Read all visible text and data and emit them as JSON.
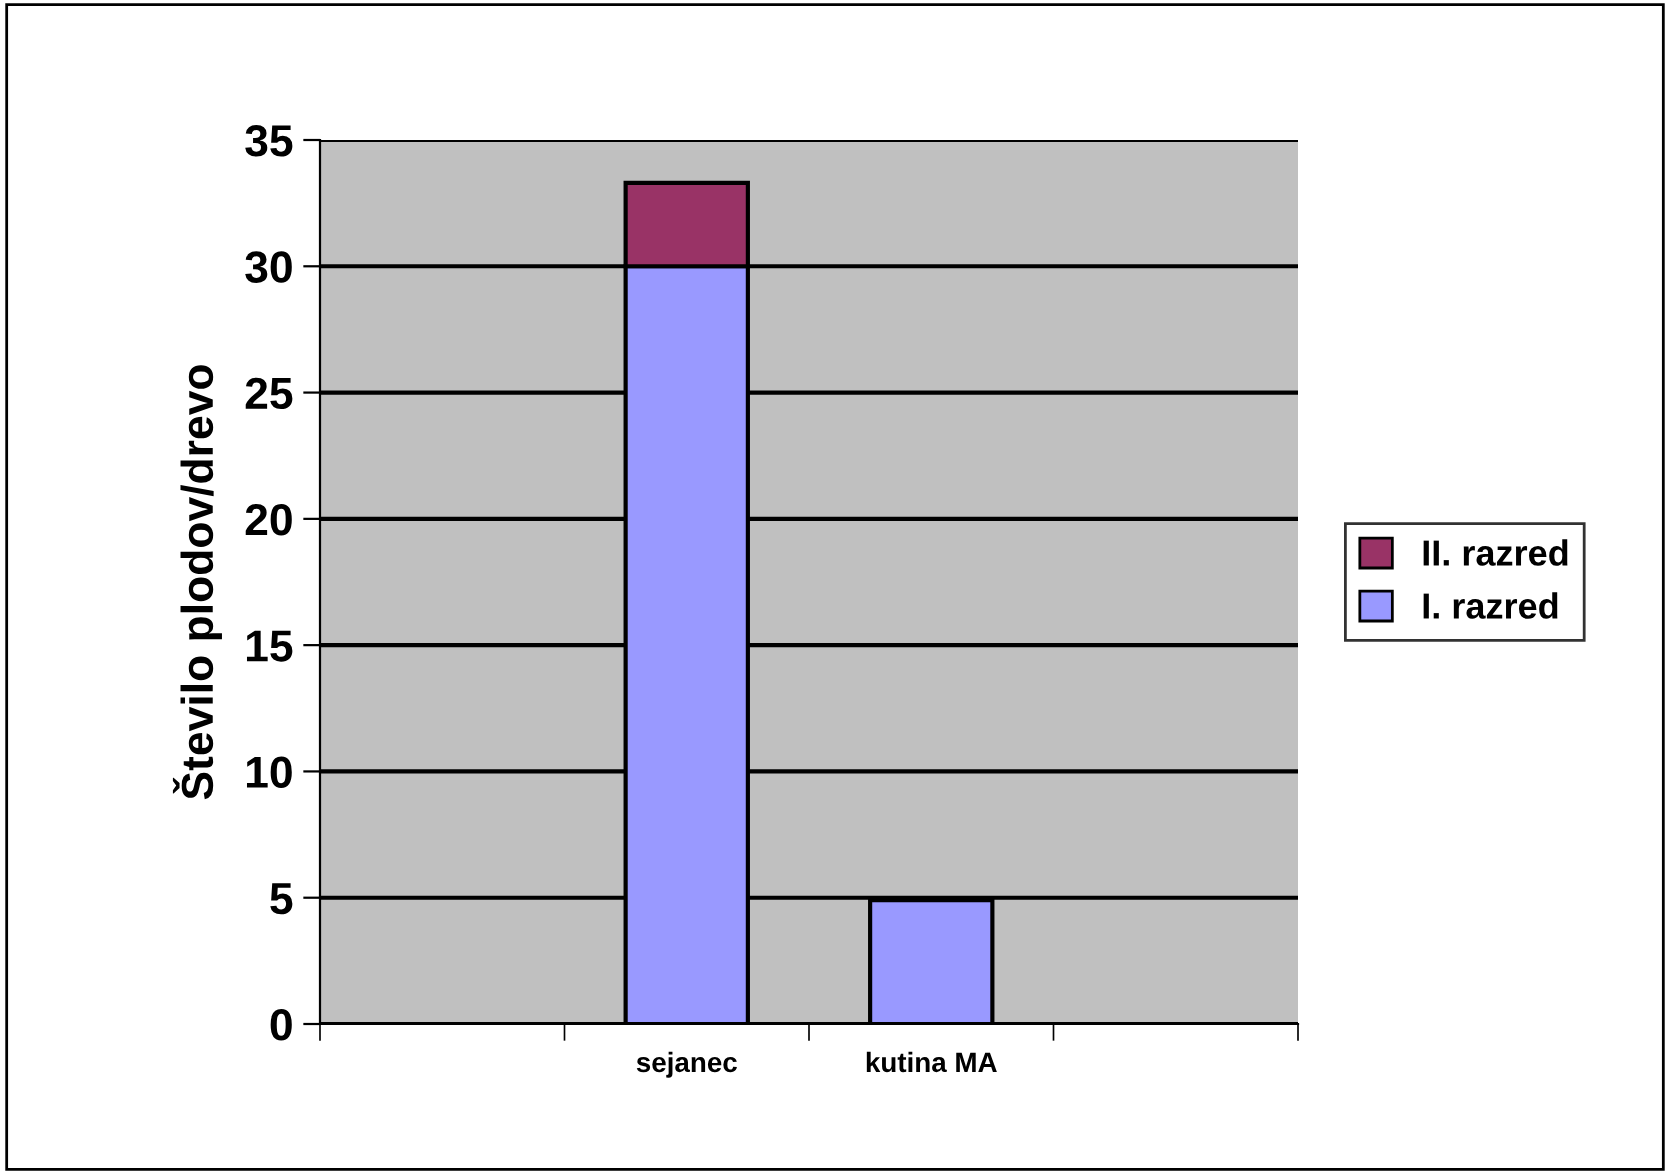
{
  "chart_data": {
    "type": "bar",
    "stacked": true,
    "ylabel": "Število plodov/drevo",
    "categories": [
      null,
      "sejanec",
      "kutina MA",
      null
    ],
    "series": [
      {
        "name": "I. razred",
        "color": "#9999ff",
        "values": [
          null,
          30,
          4.9,
          null
        ]
      },
      {
        "name": "II. razred",
        "color": "#993366",
        "values": [
          null,
          3.3,
          null,
          null
        ]
      }
    ],
    "ylim": [
      0,
      35
    ],
    "yticks": [
      0,
      5,
      10,
      15,
      20,
      25,
      30,
      35
    ],
    "grid": "y",
    "legend": "right"
  }
}
